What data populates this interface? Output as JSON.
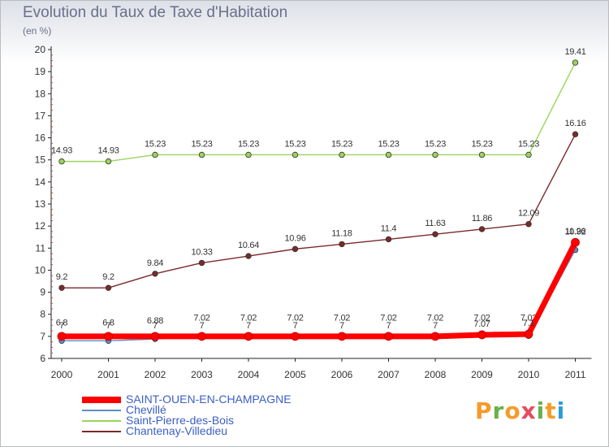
{
  "header": {
    "title": "Evolution du Taux de Taxe d'Habitation",
    "unit": "(en %)"
  },
  "brand": {
    "text": "Proxiti",
    "letters": [
      "P",
      "r",
      "o",
      "x",
      "i",
      "t",
      "i"
    ],
    "colors": [
      "#f59b2a",
      "#6ab04c",
      "#f59b2a",
      "#e84a5f",
      "#6ab04c",
      "#f59b2a",
      "#2b9bd8"
    ]
  },
  "colors": {
    "axis": "#222222",
    "grid_tick_red": "#e23a3a",
    "label": "#333333"
  },
  "chart_data": {
    "type": "line",
    "x": [
      "2000",
      "2001",
      "2002",
      "2003",
      "2004",
      "2005",
      "2006",
      "2007",
      "2008",
      "2009",
      "2010",
      "2011"
    ],
    "ylim": [
      6,
      20
    ],
    "yticks": [
      "6",
      "7",
      "8",
      "9",
      "10",
      "11",
      "12",
      "13",
      "14",
      "15",
      "16",
      "17",
      "18",
      "19",
      "20"
    ],
    "grid": false,
    "legend_position": "bottom-left",
    "series": [
      {
        "name": "SAINT-OUEN-EN-CHAMPAGNE",
        "color": "#ff0000",
        "values": [
          7,
          7,
          7,
          7,
          7,
          7,
          7,
          7,
          7,
          7.07,
          7.1,
          11.26
        ],
        "labels": [
          "7",
          "7",
          "7",
          "7",
          "7",
          "7",
          "7",
          "7",
          "7",
          "7.07",
          "7.1",
          "11.26"
        ]
      },
      {
        "name": "Chevillé",
        "color": "#5b8fc9",
        "values": [
          6.8,
          6.8,
          6.88,
          7.02,
          7.02,
          7.02,
          7.02,
          7.02,
          7.02,
          7.02,
          7.02,
          10.92
        ],
        "labels": [
          "6.8",
          "6.8",
          "6.88",
          "7.02",
          "7.02",
          "7.02",
          "7.02",
          "7.02",
          "7.02",
          "7.02",
          "7.02",
          "10.92"
        ]
      },
      {
        "name": "Saint-Pierre-des-Bois",
        "color": "#9ad45c",
        "values": [
          14.93,
          14.93,
          15.23,
          15.23,
          15.23,
          15.23,
          15.23,
          15.23,
          15.23,
          15.23,
          15.23,
          19.41
        ],
        "labels": [
          "14.93",
          "14.93",
          "15.23",
          "15.23",
          "15.23",
          "15.23",
          "15.23",
          "15.23",
          "15.23",
          "15.23",
          "15.23",
          "19.41"
        ]
      },
      {
        "name": "Chantenay-Villedieu",
        "color": "#7a2a2a",
        "values": [
          9.2,
          9.2,
          9.84,
          10.33,
          10.64,
          10.96,
          11.18,
          11.4,
          11.63,
          11.86,
          12.09,
          16.16
        ],
        "labels": [
          "9.2",
          "9.2",
          "9.84",
          "10.33",
          "10.64",
          "10.96",
          "11.18",
          "11.4",
          "11.63",
          "11.86",
          "12.09",
          "16.16"
        ]
      }
    ]
  }
}
